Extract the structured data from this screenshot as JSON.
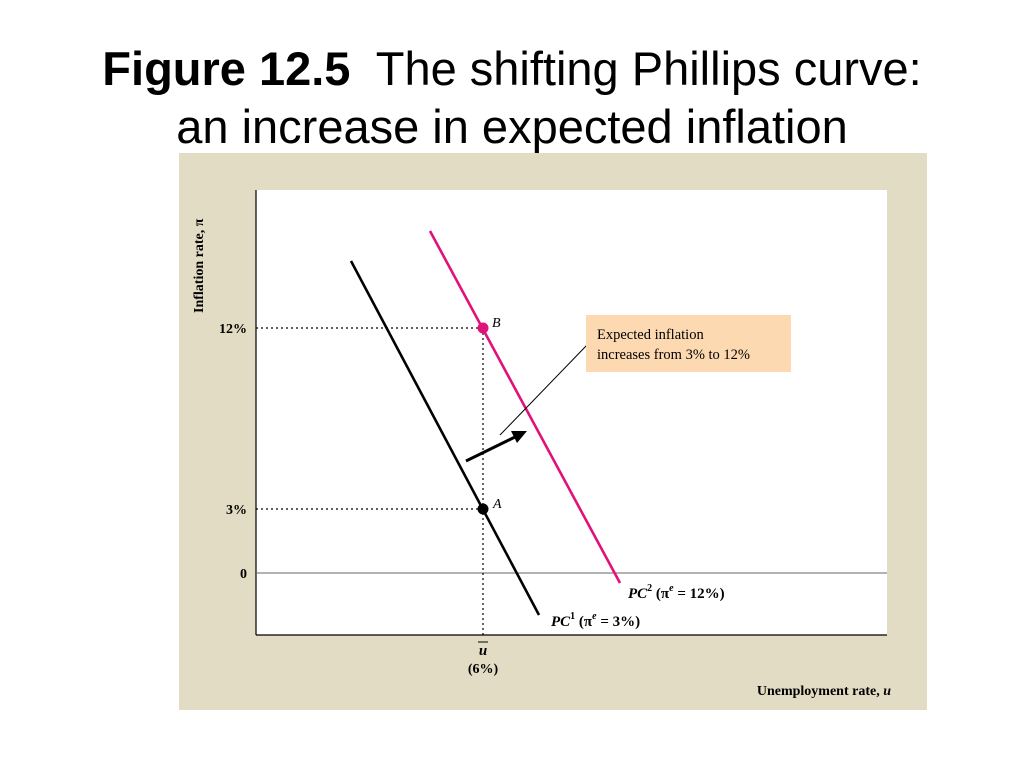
{
  "title": {
    "figure_number": "Figure 12.5",
    "caption_line1": "The shifting Phillips curve:",
    "caption_line2": "an increase in expected inflation"
  },
  "colors": {
    "panel_bg": "#e3dcc4",
    "plot_bg": "#ffffff",
    "pc1": "#000000",
    "pc2": "#e0127a",
    "callout_bg": "#fcd9b0"
  },
  "axes": {
    "y_label": "Inflation rate, π",
    "x_label_text": "Unemployment rate, ",
    "x_label_var": "u",
    "y_ticks": [
      {
        "label": "12%",
        "value": 12
      },
      {
        "label": "3%",
        "value": 3
      },
      {
        "label": "0",
        "value": 0
      }
    ],
    "x_tick_symbol": "u",
    "x_tick_value": "(6%)"
  },
  "points": [
    {
      "label": "A",
      "u": 6,
      "pi": 3
    },
    {
      "label": "B",
      "u": 6,
      "pi": 12
    }
  ],
  "curves": {
    "pc1": {
      "name": "PC",
      "sup": "1",
      "expect_open": " (π",
      "expect_sup": "e",
      "expect_close": " = 3%)"
    },
    "pc2": {
      "name": "PC",
      "sup": "2",
      "expect_open": " (π",
      "expect_sup": "e",
      "expect_close": " = 12%)"
    }
  },
  "callout": {
    "line1": "Expected inflation",
    "line2": "increases from 3% to 12%"
  }
}
